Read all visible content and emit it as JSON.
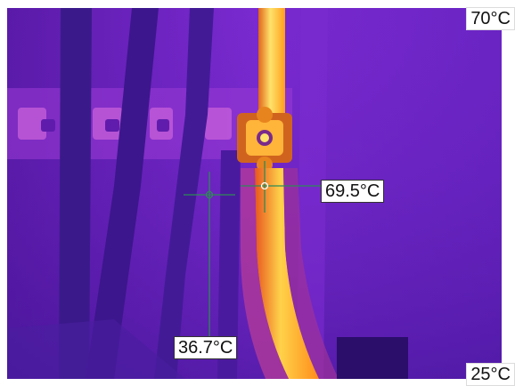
{
  "scale": {
    "max_label": "70°C",
    "min_label": "25°C"
  },
  "measurements": {
    "hot_spot": {
      "label": "69.5°C"
    },
    "cold_spot": {
      "label": "36.7°C"
    }
  },
  "colors": {
    "background_purple": "#6a1fb8",
    "cable_dark": "#3a1a8a",
    "hot_orange": "#ff9e1a",
    "hot_yellow": "#ffe36b",
    "crosshair_green": "#2e8b57"
  }
}
